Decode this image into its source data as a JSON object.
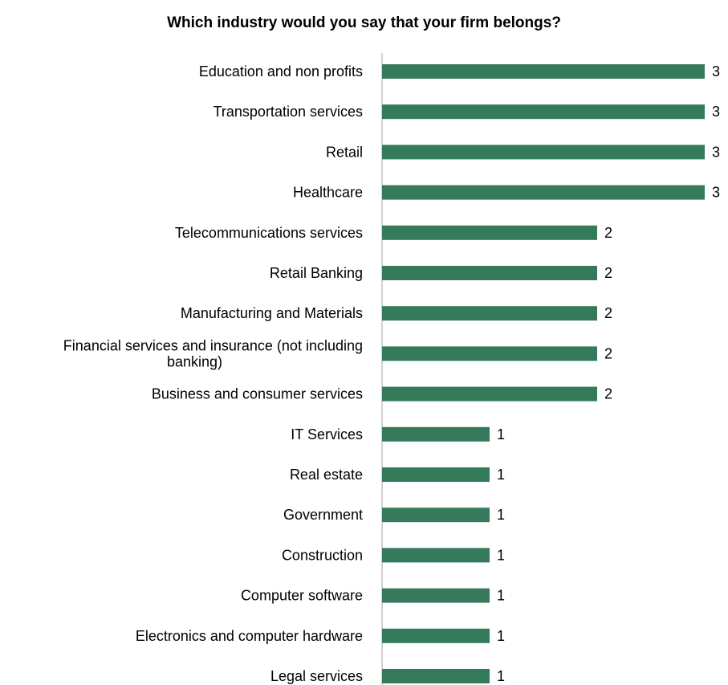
{
  "chart_data": {
    "type": "bar",
    "orientation": "horizontal",
    "title": "Which industry would you say that your firm belongs?",
    "xlabel": "",
    "ylabel": "",
    "categories": [
      "Education and non profits",
      "Transportation services",
      "Retail",
      "Healthcare",
      "Telecommunications services",
      "Retail Banking",
      "Manufacturing and Materials",
      "Financial services and insurance (not including banking)",
      "Business and consumer services",
      "IT Services",
      "Real estate",
      "Government",
      "Construction",
      "Computer software",
      "Electronics and computer hardware",
      "Legal services"
    ],
    "category_lines": [
      [
        "Education and non profits"
      ],
      [
        "Transportation services"
      ],
      [
        "Retail"
      ],
      [
        "Healthcare"
      ],
      [
        "Telecommunications services"
      ],
      [
        "Retail Banking"
      ],
      [
        "Manufacturing and Materials"
      ],
      [
        "Financial services and insurance (not including",
        "banking)"
      ],
      [
        "Business and consumer services"
      ],
      [
        "IT Services"
      ],
      [
        "Real estate"
      ],
      [
        "Government"
      ],
      [
        "Construction"
      ],
      [
        "Computer software"
      ],
      [
        "Electronics and computer hardware"
      ],
      [
        "Legal services"
      ]
    ],
    "values": [
      3,
      3,
      3,
      3,
      2,
      2,
      2,
      2,
      2,
      1,
      1,
      1,
      1,
      1,
      1,
      1
    ],
    "xlim": [
      0,
      3
    ],
    "grid": false,
    "legend": "none",
    "data_labels": true,
    "bar_color": "#357A5B",
    "axis_color": "#A6A6A6"
  }
}
